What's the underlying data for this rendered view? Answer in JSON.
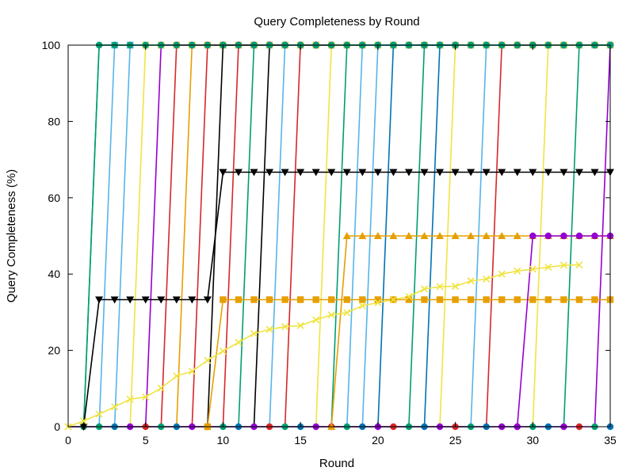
{
  "chart_data": {
    "type": "line",
    "title": "Query Completeness by Round",
    "xlabel": "Round",
    "ylabel": "Query Completeness (%)",
    "xlim": [
      0,
      35
    ],
    "ylim": [
      0,
      100
    ],
    "x_ticks": [
      "0",
      "5",
      "10",
      "15",
      "20",
      "25",
      "30",
      "35"
    ],
    "y_ticks": [
      "0",
      "20",
      "40",
      "60",
      "80",
      "100"
    ],
    "grid": false,
    "legend": "none",
    "step_series": [
      {
        "color": "#009e73",
        "marker": "circle",
        "rise_round": 1,
        "rise_end_round": 2
      },
      {
        "color": "#56b4e9",
        "marker": "square",
        "rise_round": 2,
        "rise_end_round": 3
      },
      {
        "color": "#56b4e9",
        "marker": "square",
        "rise_round": 3,
        "rise_end_round": 4
      },
      {
        "color": "#f0e442",
        "marker": "square",
        "rise_round": 4,
        "rise_end_round": 5
      },
      {
        "color": "#9400d3",
        "marker": "circle",
        "rise_round": 5,
        "rise_end_round": 6
      },
      {
        "color": "#e69f00",
        "marker": "circle",
        "rise_round": 7,
        "rise_end_round": 8
      },
      {
        "color": "#d62728",
        "marker": "circle",
        "rise_round": 6,
        "rise_end_round": 7
      },
      {
        "color": "#d62728",
        "marker": "circle",
        "rise_round": 8,
        "rise_end_round": 9
      },
      {
        "color": "#000000",
        "marker": "circle",
        "rise_round": 9,
        "rise_end_round": 10
      },
      {
        "color": "#009e73",
        "marker": "circle",
        "rise_round": 11,
        "rise_end_round": 12
      },
      {
        "color": "#000000",
        "marker": "circle",
        "rise_round": 12,
        "rise_end_round": 13
      },
      {
        "color": "#d62728",
        "marker": "circle",
        "rise_round": 10,
        "rise_end_round": 11
      },
      {
        "color": "#56b4e9",
        "marker": "circle",
        "rise_round": 13,
        "rise_end_round": 14
      },
      {
        "color": "#d62728",
        "marker": "circle",
        "rise_round": 14,
        "rise_end_round": 15
      },
      {
        "color": "#f0e442",
        "marker": "circle",
        "rise_round": 16,
        "rise_end_round": 17
      },
      {
        "color": "#009e73",
        "marker": "circle",
        "rise_round": 17,
        "rise_end_round": 18
      },
      {
        "color": "#56b4e9",
        "marker": "circle",
        "rise_round": 18,
        "rise_end_round": 19
      },
      {
        "color": "#56b4e9",
        "marker": "circle",
        "rise_round": 19,
        "rise_end_round": 20
      },
      {
        "color": "#0072b2",
        "marker": "circle",
        "rise_round": 20,
        "rise_end_round": 21
      },
      {
        "color": "#009e73",
        "marker": "circle",
        "rise_round": 22,
        "rise_end_round": 23
      },
      {
        "color": "#0072b2",
        "marker": "circle",
        "rise_round": 23,
        "rise_end_round": 24
      },
      {
        "color": "#f0e442",
        "marker": "circle",
        "rise_round": 24,
        "rise_end_round": 25
      },
      {
        "color": "#56b4e9",
        "marker": "circle",
        "rise_round": 26,
        "rise_end_round": 27
      },
      {
        "color": "#d62728",
        "marker": "circle",
        "rise_round": 27,
        "rise_end_round": 28
      },
      {
        "color": "#f0e442",
        "marker": "circle",
        "rise_round": 30,
        "rise_end_round": 31
      },
      {
        "color": "#009e73",
        "marker": "circle",
        "rise_round": 32,
        "rise_end_round": 33
      },
      {
        "color": "#9400d3",
        "marker": "circle",
        "rise_round": 34,
        "rise_end_round": 35
      }
    ],
    "series": [
      {
        "color": "#009e73",
        "marker": "circle",
        "x": [
          1,
          2,
          3,
          4,
          5,
          6,
          7,
          8,
          9,
          10,
          11,
          12,
          13,
          14,
          15,
          16,
          17,
          18,
          19,
          20,
          21,
          22,
          23,
          24,
          25,
          26,
          27,
          28,
          29,
          30,
          31,
          32,
          33,
          34,
          35
        ],
        "y": [
          0,
          100,
          100,
          100,
          100,
          100,
          100,
          100,
          100,
          100,
          100,
          100,
          100,
          100,
          100,
          100,
          100,
          100,
          100,
          100,
          100,
          100,
          100,
          100,
          100,
          100,
          100,
          100,
          100,
          100,
          100,
          100,
          100,
          100,
          100
        ]
      },
      {
        "color": "#000000",
        "marker": "triangle-down",
        "x": [
          1,
          2,
          3,
          4,
          5,
          6,
          7,
          8,
          9,
          10,
          11,
          12,
          13,
          14,
          15,
          16,
          17,
          18,
          19,
          20,
          21,
          22,
          23,
          24,
          25,
          26,
          27,
          28,
          29,
          30,
          31,
          32,
          33,
          34,
          35
        ],
        "y": [
          0,
          33.3,
          33.3,
          33.3,
          33.3,
          33.3,
          33.3,
          33.3,
          33.3,
          66.7,
          66.7,
          66.7,
          66.7,
          66.7,
          66.7,
          66.7,
          66.7,
          66.7,
          66.7,
          66.7,
          66.7,
          66.7,
          66.7,
          66.7,
          66.7,
          66.7,
          66.7,
          66.7,
          66.7,
          66.7,
          66.7,
          66.7,
          66.7,
          66.7,
          66.7
        ]
      },
      {
        "color": "#e69f00",
        "marker": "square",
        "x": [
          9,
          10,
          11,
          12,
          13,
          14,
          15,
          16,
          17,
          18,
          19,
          20,
          21,
          22,
          23,
          24,
          25,
          26,
          27,
          28,
          29,
          30,
          31,
          32,
          33,
          34,
          35
        ],
        "y": [
          0,
          33.3,
          33.3,
          33.3,
          33.3,
          33.3,
          33.3,
          33.3,
          33.3,
          33.3,
          33.3,
          33.3,
          33.3,
          33.3,
          33.3,
          33.3,
          33.3,
          33.3,
          33.3,
          33.3,
          33.3,
          33.3,
          33.3,
          33.3,
          33.3,
          33.3,
          33.3
        ]
      },
      {
        "color": "#e69f00",
        "marker": "triangle-up",
        "x": [
          17,
          18,
          19,
          20,
          21,
          22,
          23,
          24,
          25,
          26,
          27,
          28,
          29,
          30,
          31,
          32,
          33,
          34,
          35
        ],
        "y": [
          0,
          50,
          50,
          50,
          50,
          50,
          50,
          50,
          50,
          50,
          50,
          50,
          50,
          50,
          50,
          50,
          50,
          50,
          50
        ]
      },
      {
        "color": "#9400d3",
        "marker": "circle",
        "x": [
          29,
          30,
          31,
          32,
          33,
          34,
          35
        ],
        "y": [
          0,
          50,
          50,
          50,
          50,
          50,
          50
        ]
      },
      {
        "color": "#f0e442",
        "marker": "cross",
        "x": [
          0,
          1,
          2,
          3,
          4,
          5,
          6,
          7,
          8,
          9,
          10,
          11,
          12,
          13,
          14,
          15,
          16,
          17,
          18,
          19,
          20,
          21,
          22,
          23,
          24,
          25,
          26,
          27,
          28,
          29,
          30,
          31,
          32,
          33
        ],
        "y": [
          0,
          1.5,
          3.3,
          5.2,
          7.2,
          7.8,
          10.1,
          13.3,
          14.5,
          17.4,
          19.8,
          22.1,
          24.4,
          25.5,
          26.2,
          26.5,
          28,
          29.3,
          29.9,
          31.7,
          32.5,
          33.3,
          34.1,
          36.1,
          36.7,
          36.8,
          38.2,
          38.7,
          40,
          40.8,
          41.3,
          41.8,
          42.3,
          42.4
        ]
      }
    ],
    "zero_markers": {
      "x": [
        1,
        2,
        3,
        4,
        5,
        6,
        7,
        8,
        9,
        10,
        11,
        12,
        13,
        14,
        15,
        16,
        17,
        18,
        19,
        20,
        21,
        22,
        23,
        24,
        25,
        26,
        27,
        28,
        29,
        30,
        31,
        32,
        33,
        34,
        35
      ],
      "colors": [
        "#d62728",
        "#009e73",
        "#0072b2",
        "#9400d3"
      ]
    }
  }
}
